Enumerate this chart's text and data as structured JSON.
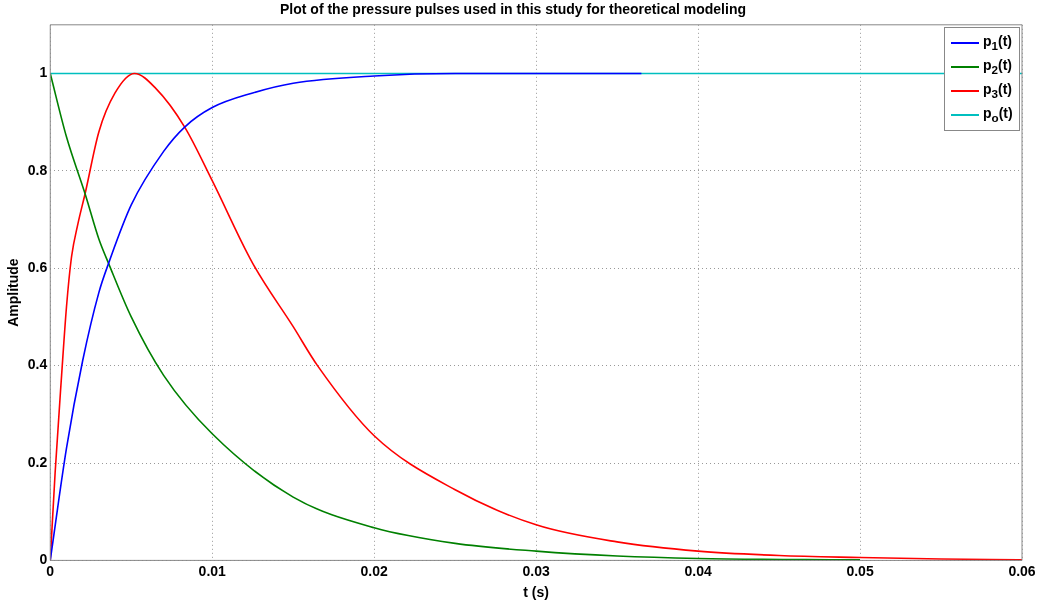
{
  "chart_data": {
    "type": "line",
    "title": "Plot of the pressure pulses used in this study for theoretical modeling",
    "xlabel": "t (s)",
    "ylabel": "Amplitude",
    "xlim": [
      0,
      0.06
    ],
    "xticks": [
      0,
      0.01,
      0.02,
      0.03,
      0.04,
      0.05,
      0.06
    ],
    "ylim": [
      0,
      1.1
    ],
    "yticks": [
      0,
      0.2,
      0.4,
      0.6,
      0.8,
      1
    ],
    "grid": true,
    "legend": "top right",
    "marker": "none",
    "line_style": "solid",
    "series": [
      {
        "name": "p$_{1}$(t)",
        "color": "#0000ff",
        "x": [
          0,
          0.001,
          0.002,
          0.003,
          0.0036,
          0.005,
          0.007,
          0.0083,
          0.01,
          0.0125,
          0.015,
          0.02,
          0.025,
          0.03,
          0.0365
        ],
        "values": [
          0,
          0.23,
          0.41,
          0.55,
          0.61,
          0.73,
          0.84,
          0.89,
          0.93,
          0.96,
          0.98,
          0.995,
          1.0,
          1.0,
          1.0
        ]
      },
      {
        "name": "p$_{2}$(t)",
        "color": "#008000",
        "x": [
          0,
          0.001,
          0.00215,
          0.003,
          0.0036,
          0.005,
          0.007,
          0.01,
          0.015,
          0.02,
          0.025,
          0.03,
          0.035,
          0.04,
          0.05
        ],
        "values": [
          1,
          0.87,
          0.753,
          0.66,
          0.61,
          0.5,
          0.38,
          0.26,
          0.13,
          0.067,
          0.035,
          0.019,
          0.009,
          0.004,
          0.001
        ]
      },
      {
        "name": "p$_{3}$(t)",
        "color": "#ff0000",
        "x": [
          0,
          0.0003,
          0.0007,
          0.001,
          0.0013,
          0.0017,
          0.00215,
          0.003,
          0.004,
          0.0052,
          0.0065,
          0.0083,
          0.01,
          0.0125,
          0.015,
          0.0165,
          0.02,
          0.025,
          0.03,
          0.035,
          0.04,
          0.045,
          0.05,
          0.055,
          0.06
        ],
        "values": [
          0,
          0.18,
          0.38,
          0.52,
          0.62,
          0.69,
          0.753,
          0.88,
          0.96,
          1.0,
          0.97,
          0.89,
          0.78,
          0.61,
          0.48,
          0.4,
          0.256,
          0.145,
          0.073,
          0.038,
          0.019,
          0.01,
          0.006,
          0.003,
          0.001
        ]
      },
      {
        "name": "p$_{o}$(t)",
        "color": "#00bfbf",
        "x": [
          0,
          0.06
        ],
        "values": [
          1,
          1
        ]
      }
    ]
  }
}
